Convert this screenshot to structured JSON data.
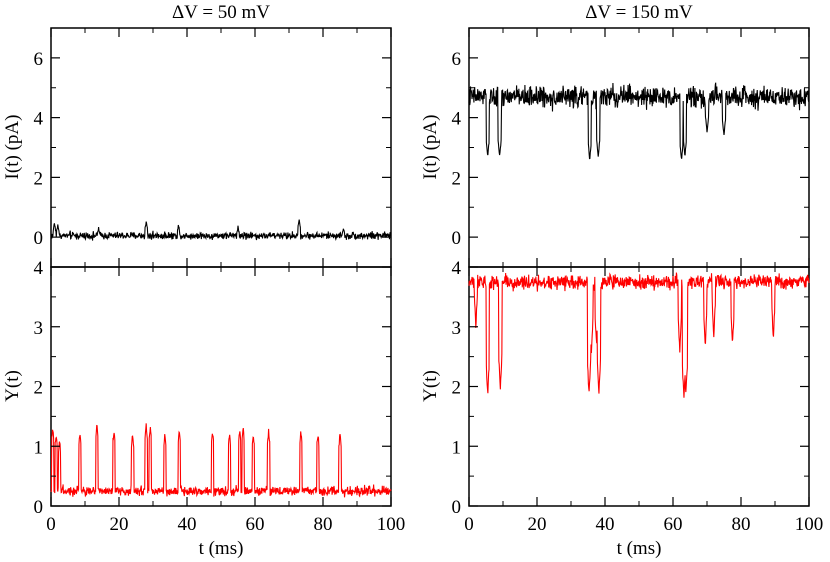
{
  "chart_data": [
    {
      "panel": "left",
      "type": "line",
      "title": "ΔV = 50 mV",
      "xlabel": "t  (ms)",
      "xlim": [
        0,
        100
      ],
      "xticks": [
        "0",
        "20",
        "40",
        "60",
        "80",
        "100"
      ],
      "xtick_values": [
        0,
        20,
        40,
        60,
        80,
        100
      ],
      "top": {
        "ylabel": "I(t)  (pA)",
        "ylim": [
          -1,
          7
        ],
        "yticks": [
          "0",
          "2",
          "4",
          "6"
        ],
        "ytick_values": [
          0,
          2,
          4,
          6
        ],
        "series": [
          {
            "name": "current",
            "color": "#000000",
            "baseline": 0.05,
            "noise": 0.12,
            "spikes": [
              [
                1.0,
                0.45
              ],
              [
                2.0,
                0.4
              ],
              [
                14,
                0.3
              ],
              [
                28,
                0.5
              ],
              [
                37.5,
                0.4
              ],
              [
                55,
                0.35
              ],
              [
                73,
                0.55
              ],
              [
                86,
                0.3
              ]
            ],
            "dips": []
          }
        ]
      },
      "bottom": {
        "ylabel": "Y(t)",
        "ylim": [
          0,
          4
        ],
        "yticks": [
          "0",
          "1",
          "2",
          "3",
          "4"
        ],
        "ytick_values": [
          0,
          1,
          2,
          3,
          4
        ],
        "series": [
          {
            "name": "Y",
            "color": "#ff0000",
            "baseline": 0.25,
            "noise": 0.08,
            "spikes": [
              [
                0.5,
                1.3
              ],
              [
                1.5,
                1.2
              ],
              [
                2.5,
                1.1
              ],
              [
                8.5,
                1.2
              ],
              [
                13.5,
                1.35
              ],
              [
                18.5,
                1.25
              ],
              [
                24,
                1.2
              ],
              [
                28,
                1.35
              ],
              [
                29.2,
                1.3
              ],
              [
                33.5,
                1.2
              ],
              [
                37.7,
                1.25
              ],
              [
                47.5,
                1.25
              ],
              [
                52.5,
                1.2
              ],
              [
                55.5,
                1.25
              ],
              [
                56.5,
                1.3
              ],
              [
                59.5,
                1.2
              ],
              [
                64,
                1.25
              ],
              [
                73.5,
                1.25
              ],
              [
                78.5,
                1.2
              ],
              [
                85,
                1.2
              ]
            ],
            "dips": []
          }
        ]
      }
    },
    {
      "panel": "right",
      "type": "line",
      "title": "ΔV = 150 mV",
      "xlabel": "t  (ms)",
      "xlim": [
        0,
        100
      ],
      "xticks": [
        "0",
        "20",
        "40",
        "60",
        "80",
        "100"
      ],
      "xtick_values": [
        0,
        20,
        40,
        60,
        80,
        100
      ],
      "top": {
        "ylabel": "I(t)  (pA)",
        "ylim": [
          -1,
          7
        ],
        "yticks": [
          "0",
          "2",
          "4",
          "6"
        ],
        "ytick_values": [
          0,
          2,
          4,
          6
        ],
        "series": [
          {
            "name": "current",
            "color": "#000000",
            "baseline": 4.7,
            "noise": 0.35,
            "spikes": [],
            "dips": [
              [
                5.5,
                2.7
              ],
              [
                9.0,
                2.7
              ],
              [
                35.5,
                2.6
              ],
              [
                38.0,
                2.7
              ],
              [
                62.5,
                2.6
              ],
              [
                63.5,
                2.7
              ],
              [
                70,
                3.5
              ],
              [
                75,
                3.4
              ]
            ]
          }
        ]
      },
      "bottom": {
        "ylabel": "Y(t)",
        "ylim": [
          0,
          4
        ],
        "yticks": [
          "0",
          "1",
          "2",
          "3",
          "4"
        ],
        "ytick_values": [
          0,
          1,
          2,
          3,
          4
        ],
        "series": [
          {
            "name": "Y",
            "color": "#ff0000",
            "baseline": 3.75,
            "noise": 0.12,
            "spikes": [],
            "dips": [
              [
                5.5,
                1.85
              ],
              [
                9.2,
                1.95
              ],
              [
                2.0,
                3.0
              ],
              [
                35.3,
                1.85
              ],
              [
                36.0,
                2.6
              ],
              [
                38.2,
                1.85
              ],
              [
                37.5,
                2.7
              ],
              [
                62.0,
                2.6
              ],
              [
                63.2,
                1.8
              ],
              [
                63.8,
                1.85
              ],
              [
                69.5,
                2.7
              ],
              [
                72.0,
                2.85
              ],
              [
                77.5,
                2.7
              ],
              [
                89.5,
                2.8
              ]
            ]
          }
        ]
      }
    }
  ]
}
